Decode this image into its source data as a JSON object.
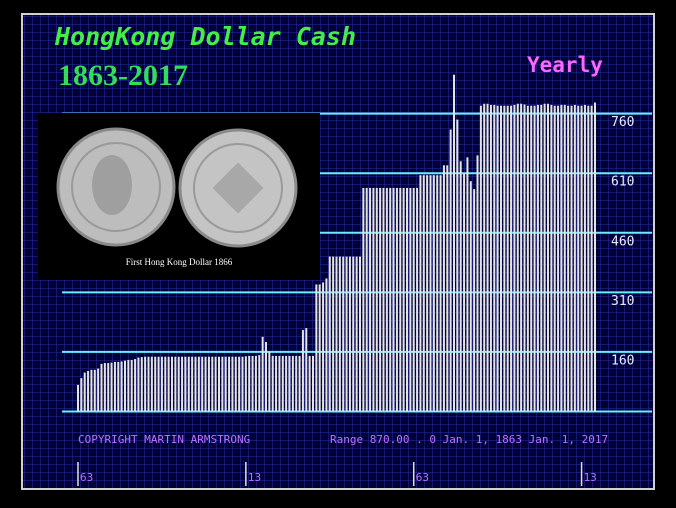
{
  "image_caption": "First Hong Kong Dollar 1866",
  "chart_data": {
    "type": "bar",
    "title": "HongKong Dollar Cash",
    "subtitle": "1863-2017",
    "period": "Yearly",
    "copyright": "COPYRIGHT MARTIN ARMSTRONG",
    "range_text": "Range  870.00 . 0 Jan. 1,  1863 Jan. 1,  2017",
    "x": [
      1863,
      1864,
      1865,
      1866,
      1867,
      1868,
      1869,
      1870,
      1871,
      1872,
      1873,
      1874,
      1875,
      1876,
      1877,
      1878,
      1879,
      1880,
      1881,
      1882,
      1883,
      1884,
      1885,
      1886,
      1887,
      1888,
      1889,
      1890,
      1891,
      1892,
      1893,
      1894,
      1895,
      1896,
      1897,
      1898,
      1899,
      1900,
      1901,
      1902,
      1903,
      1904,
      1905,
      1906,
      1907,
      1908,
      1909,
      1910,
      1911,
      1912,
      1913,
      1914,
      1915,
      1916,
      1917,
      1918,
      1919,
      1920,
      1921,
      1922,
      1923,
      1924,
      1925,
      1926,
      1927,
      1928,
      1929,
      1930,
      1931,
      1932,
      1933,
      1934,
      1935,
      1936,
      1937,
      1938,
      1939,
      1940,
      1941,
      1942,
      1943,
      1944,
      1945,
      1946,
      1947,
      1948,
      1949,
      1950,
      1951,
      1952,
      1953,
      1954,
      1955,
      1956,
      1957,
      1958,
      1959,
      1960,
      1961,
      1962,
      1963,
      1964,
      1965,
      1966,
      1967,
      1968,
      1969,
      1970,
      1971,
      1972,
      1973,
      1974,
      1975,
      1976,
      1977,
      1978,
      1979,
      1980,
      1981,
      1982,
      1983,
      1984,
      1985,
      1986,
      1987,
      1988,
      1989,
      1990,
      1991,
      1992,
      1993,
      1994,
      1995,
      1996,
      1997,
      1998,
      1999,
      2000,
      2001,
      2002,
      2003,
      2004,
      2005,
      2006,
      2007,
      2008,
      2009,
      2010,
      2011,
      2012,
      2013,
      2014,
      2015,
      2016,
      2017
    ],
    "values": [
      77,
      94,
      108,
      112,
      115,
      115,
      118,
      130,
      132,
      132,
      133,
      135,
      135,
      136,
      138,
      140,
      140,
      142,
      146,
      147,
      148,
      148,
      148,
      148,
      148,
      148,
      148,
      148,
      148,
      148,
      148,
      148,
      148,
      148,
      148,
      148,
      148,
      148,
      148,
      148,
      148,
      148,
      148,
      148,
      148,
      148,
      148,
      148,
      148,
      148,
      149,
      150,
      150,
      150,
      152,
      198,
      185,
      160,
      150,
      150,
      150,
      150,
      150,
      150,
      150,
      150,
      150,
      215,
      220,
      150,
      150,
      330,
      330,
      335,
      345,
      400,
      400,
      400,
      400,
      400,
      400,
      400,
      400,
      400,
      400,
      573,
      573,
      573,
      573,
      573,
      573,
      573,
      573,
      573,
      573,
      573,
      573,
      573,
      573,
      573,
      573,
      573,
      605,
      605,
      605,
      605,
      605,
      605,
      605,
      630,
      630,
      720,
      858,
      745,
      640,
      610,
      650,
      590,
      570,
      655,
      780,
      785,
      785,
      782,
      782,
      780,
      780,
      780,
      780,
      780,
      782,
      785,
      785,
      783,
      780,
      780,
      780,
      782,
      782,
      785,
      785,
      782,
      780,
      780,
      782,
      782,
      780,
      780,
      782,
      780,
      780,
      782,
      780,
      780,
      788
    ],
    "color": "#e4e4e4",
    "grid": true,
    "grid_color": "#66f0ff",
    "xlim": [
      1863,
      2017
    ],
    "xticks": [
      {
        "value": 1863,
        "label": "63"
      },
      {
        "value": 1913,
        "label": "13"
      },
      {
        "value": 1963,
        "label": "63"
      },
      {
        "value": 2013,
        "label": "13"
      }
    ],
    "ylim": [
      10,
      880
    ],
    "yticks": [
      160,
      310,
      460,
      610,
      760
    ]
  }
}
